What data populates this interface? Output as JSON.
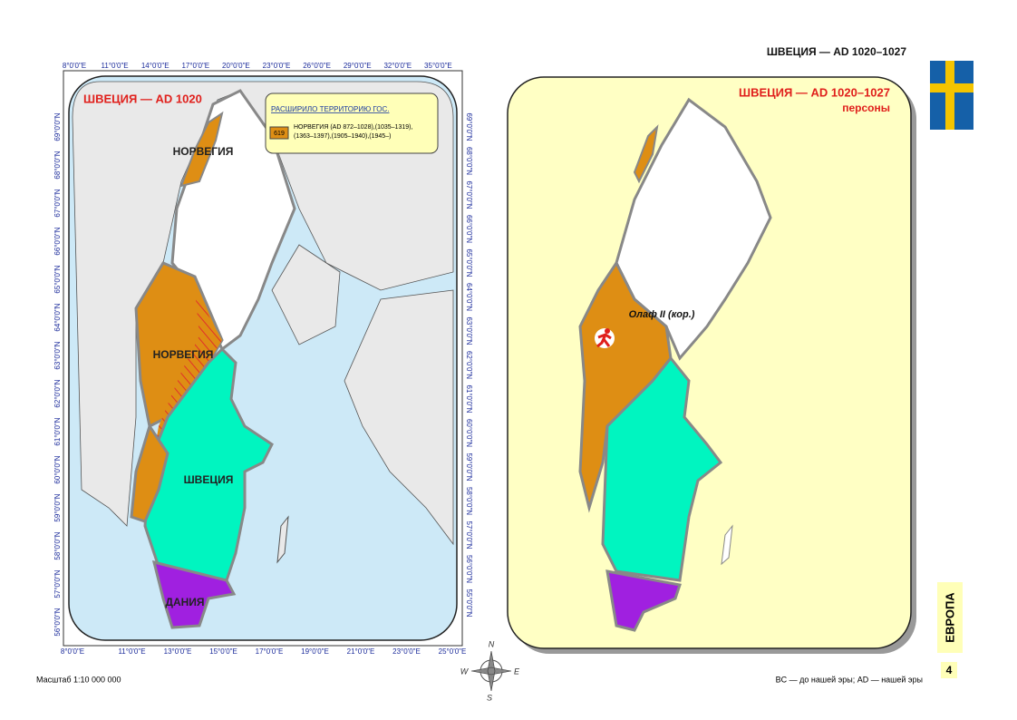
{
  "header": {
    "title": "ШВЕЦИЯ — AD 1020–1027"
  },
  "map1": {
    "title": "ШВЕЦИЯ —  AD 1020",
    "legend": {
      "title": "РАСШИРИЛО ТЕРРИТОРИЮ ГОС.",
      "code": "619",
      "lines": [
        "НОРВЕГИЯ (AD 872–1028),(1035–1319),",
        "(1363–1397),(1905–1940),(1945–)"
      ]
    },
    "labels": [
      "НОРВЕГИЯ",
      "НОРВЕГИЯ",
      "ШВЕЦИЯ",
      "ДАНИЯ"
    ],
    "top_ticks": [
      "8°0'0\"E",
      "11°0'0\"E",
      "14°0'0\"E",
      "17°0'0\"E",
      "20°0'0\"E",
      "23°0'0\"E",
      "26°0'0\"E",
      "29°0'0\"E",
      "32°0'0\"E",
      "35°0'0\"E"
    ],
    "bottom_ticks": [
      "8°0'0\"E",
      "11°0'0\"E",
      "13°0'0\"E",
      "15°0'0\"E",
      "17°0'0\"E",
      "19°0'0\"E",
      "21°0'0\"E",
      "23°0'0\"E",
      "25°0'0\"E"
    ],
    "left_ticks": [
      "69°0'0\"N",
      "68°0'0\"N",
      "67°0'0\"N",
      "66°0'0\"N",
      "65°0'0\"N",
      "64°0'0\"N",
      "63°0'0\"N",
      "62°0'0\"N",
      "61°0'0\"N",
      "60°0'0\"N",
      "59°0'0\"N",
      "58°0'0\"N",
      "57°0'0\"N",
      "56°0'0\"N"
    ],
    "right_ticks": [
      "69°0'0\"N",
      "68°0'0\"N",
      "67°0'0\"N",
      "66°0'0\"N",
      "65°0'0\"N",
      "64°0'0\"N",
      "63°0'0\"N",
      "62°0'0\"N",
      "61°0'0\"N",
      "60°0'0\"N",
      "59°0'0\"N",
      "58°0'0\"N",
      "57°0'0\"N",
      "56°0'0\"N",
      "55°0'0\"N"
    ]
  },
  "map2": {
    "title": "ШВЕЦИЯ —  AD 1020–1027",
    "subtitle": "персоны",
    "person": "Олаф II (кор.)"
  },
  "compass": [
    "N",
    "E",
    "S",
    "W"
  ],
  "sidebar": {
    "region": "ЕВРОПА",
    "page": "4"
  },
  "footer": {
    "scale": "Масштаб 1:10 000 000",
    "note": "BC — до нашей эры; AD — нашей эры"
  }
}
